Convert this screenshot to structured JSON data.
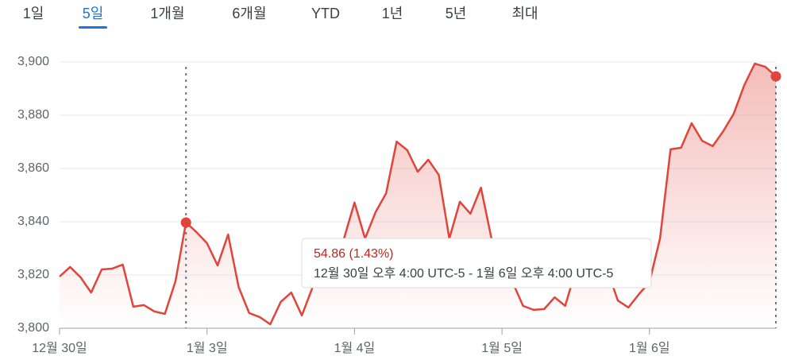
{
  "tabs": [
    "1일",
    "5일",
    "1개월",
    "6개월",
    "YTD",
    "1년",
    "5년",
    "최대"
  ],
  "tooltip": {
    "change": "54.86 (1.43%)",
    "range": "12월 30일 오후 4:00 UTC-5 - 1월 6일 오후 4:00 UTC-5"
  },
  "chart_data": {
    "type": "line",
    "series": [
      {
        "color": "#e0443a",
        "values": [
          3819.4,
          3823.0,
          3819.1,
          3813.4,
          3822.1,
          3822.4,
          3823.9,
          3808.1,
          3808.7,
          3806.3,
          3805.4,
          3817.6,
          3839.7,
          3836.1,
          3831.9,
          3823.6,
          3835.2,
          3815.5,
          3805.7,
          3804.2,
          3801.5,
          3809.9,
          3813.4,
          3804.8,
          3815.2,
          3820.3,
          3827.8,
          3833.7,
          3847.2,
          3833.7,
          3843.6,
          3850.7,
          3870.1,
          3866.9,
          3858.8,
          3863.3,
          3857.6,
          3833.7,
          3847.5,
          3843.0,
          3852.8,
          3833.7,
          3824.8,
          3817.3,
          3808.4,
          3806.9,
          3807.2,
          3811.6,
          3808.4,
          3821.8,
          3824.8,
          3823.3,
          3821.8,
          3810.4,
          3807.8,
          3812.8,
          3817.3,
          3833.7,
          3867.2,
          3867.8,
          3877.0,
          3870.4,
          3868.4,
          3874.0,
          3880.6,
          3891.3,
          3899.4,
          3898.2,
          3894.6
        ]
      }
    ],
    "xlim": [
      0,
      68
    ],
    "xticks": [
      {
        "value": 0,
        "label": "12월 30일"
      },
      {
        "value": 14,
        "label": "1월 3일"
      },
      {
        "value": 28,
        "label": "1월 4일"
      },
      {
        "value": 42,
        "label": "1월 5일"
      },
      {
        "value": 56,
        "label": "1월 6일"
      }
    ],
    "ylim": [
      3800,
      3900
    ],
    "yticks": [
      {
        "value": 3800,
        "label": "3,800"
      },
      {
        "value": 3820,
        "label": "3,820"
      },
      {
        "value": 3840,
        "label": "3,840"
      },
      {
        "value": 3860,
        "label": "3,860"
      },
      {
        "value": 3880,
        "label": "3,880"
      },
      {
        "value": 3900,
        "label": "3,900"
      }
    ],
    "grid": true
  }
}
